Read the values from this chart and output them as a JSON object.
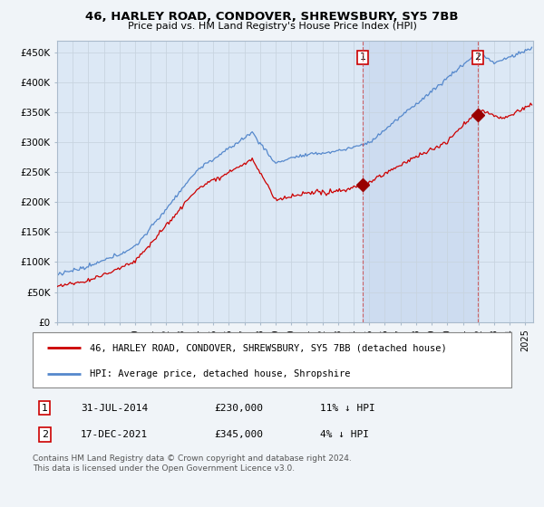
{
  "title": "46, HARLEY ROAD, CONDOVER, SHREWSBURY, SY5 7BB",
  "subtitle": "Price paid vs. HM Land Registry's House Price Index (HPI)",
  "background_color": "#f0f4f8",
  "plot_bg_color": "#dce8f5",
  "plot_shade_color": "#c8d8ee",
  "ylabel_ticks": [
    "£0",
    "£50K",
    "£100K",
    "£150K",
    "£200K",
    "£250K",
    "£300K",
    "£350K",
    "£400K",
    "£450K"
  ],
  "ytick_values": [
    0,
    50000,
    100000,
    150000,
    200000,
    250000,
    300000,
    350000,
    400000,
    450000
  ],
  "ylim": [
    0,
    470000
  ],
  "xlim_start": 1995.0,
  "xlim_end": 2025.5,
  "sale1_date": 2014.58,
  "sale1_price": 230000,
  "sale2_date": 2021.96,
  "sale2_price": 345000,
  "red_line_color": "#cc0000",
  "blue_line_color": "#5588cc",
  "sale_marker_color": "#990000",
  "grid_color": "#c8d4e0",
  "legend_label_red": "46, HARLEY ROAD, CONDOVER, SHREWSBURY, SY5 7BB (detached house)",
  "legend_label_blue": "HPI: Average price, detached house, Shropshire",
  "annotation1_date": "31-JUL-2014",
  "annotation1_price": "£230,000",
  "annotation1_hpi": "11% ↓ HPI",
  "annotation2_date": "17-DEC-2021",
  "annotation2_price": "£345,000",
  "annotation2_hpi": "4% ↓ HPI",
  "footer": "Contains HM Land Registry data © Crown copyright and database right 2024.\nThis data is licensed under the Open Government Licence v3.0."
}
